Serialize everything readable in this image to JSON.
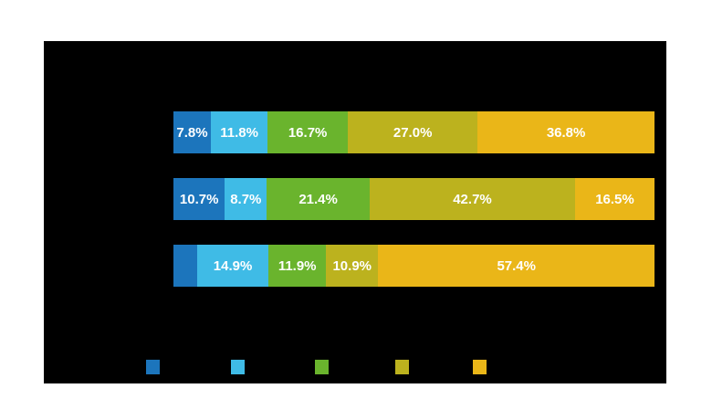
{
  "chart_data": {
    "type": "bar",
    "subtype": "horizontal-stacked",
    "unit": "percent",
    "background": "#000000",
    "xlim": [
      0,
      100
    ],
    "bars": [
      {
        "segments": [
          {
            "value": 7.8,
            "label": "7.8%",
            "color": "#1c75bc"
          },
          {
            "value": 11.8,
            "label": "11.8%",
            "color": "#3fbbe6"
          },
          {
            "value": 16.7,
            "label": "16.7%",
            "color": "#6ab42d"
          },
          {
            "value": 27.0,
            "label": "27.0%",
            "color": "#bcb21e"
          },
          {
            "value": 36.8,
            "label": "36.8%",
            "color": "#eab618"
          }
        ]
      },
      {
        "segments": [
          {
            "value": 10.7,
            "label": "10.7%",
            "color": "#1c75bc"
          },
          {
            "value": 8.7,
            "label": "8.7%",
            "color": "#3fbbe6"
          },
          {
            "value": 21.4,
            "label": "21.4%",
            "color": "#6ab42d"
          },
          {
            "value": 42.7,
            "label": "42.7%",
            "color": "#bcb21e"
          },
          {
            "value": 16.5,
            "label": "16.5%",
            "color": "#eab618"
          }
        ]
      },
      {
        "segments": [
          {
            "value": 4.9,
            "label": "",
            "color": "#1c75bc"
          },
          {
            "value": 14.9,
            "label": "14.9%",
            "color": "#3fbbe6"
          },
          {
            "value": 11.9,
            "label": "11.9%",
            "color": "#6ab42d"
          },
          {
            "value": 10.9,
            "label": "10.9%",
            "color": "#bcb21e"
          },
          {
            "value": 57.4,
            "label": "57.4%",
            "color": "#eab618"
          }
        ]
      }
    ],
    "legend": {
      "position": "bottom",
      "swatch_colors": [
        "#1c75bc",
        "#3fbbe6",
        "#6ab42d",
        "#bcb21e",
        "#eab618"
      ]
    }
  }
}
